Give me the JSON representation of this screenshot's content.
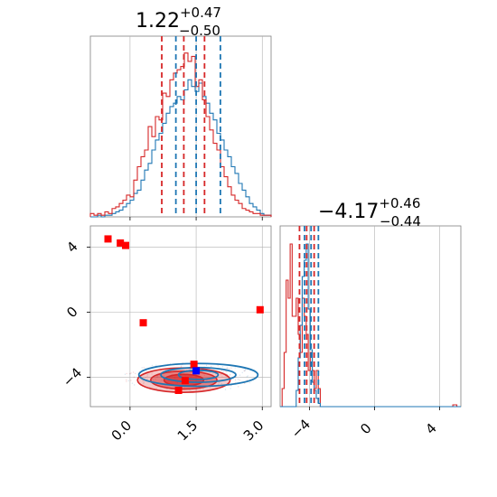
{
  "chart_data": {
    "type": "corner",
    "colors": {
      "red": "#d62728",
      "blue": "#1f77b4",
      "red_marker": "#ff0000",
      "blue_marker": "#0000ff",
      "grid": "#b0b0b0"
    },
    "x_param": {
      "title_main": "1.22",
      "title_sup": "+0.47",
      "title_sub": "−0.50",
      "range": [
        -0.9,
        3.2
      ],
      "ticks": [
        0.0,
        1.5,
        3.0
      ],
      "tick_labels": [
        "0.0",
        "1.5",
        "3.0"
      ],
      "quantiles_red": [
        0.72,
        1.22,
        1.69
      ],
      "quantiles_blue": [
        1.04,
        1.5,
        2.05
      ]
    },
    "y_param": {
      "title_main": "−4.17",
      "title_sup": "+0.46",
      "title_sub": "−0.44",
      "range": [
        -5.8,
        5.3
      ],
      "ticks": [
        -4,
        0,
        4
      ],
      "tick_labels": [
        "−4",
        "0",
        "4"
      ],
      "quantiles_red": [
        -4.61,
        -4.17,
        -3.71
      ],
      "quantiles_blue": [
        -4.3,
        -3.9,
        -3.45
      ]
    },
    "hist_x_red": [
      0.02,
      0.01,
      0.02,
      0.01,
      0.03,
      0.02,
      0.05,
      0.06,
      0.08,
      0.1,
      0.13,
      0.12,
      0.22,
      0.3,
      0.36,
      0.4,
      0.54,
      0.48,
      0.6,
      0.58,
      0.74,
      0.72,
      0.82,
      0.86,
      0.88,
      0.9,
      0.98,
      0.93,
      0.96,
      0.78,
      0.82,
      0.7,
      0.6,
      0.52,
      0.44,
      0.4,
      0.3,
      0.24,
      0.18,
      0.13,
      0.1,
      0.08,
      0.05,
      0.04,
      0.03,
      0.02,
      0.02,
      0.01,
      0.01,
      0.01
    ],
    "hist_x_blue": [
      0.0,
      0.0,
      0.01,
      0.0,
      0.01,
      0.01,
      0.02,
      0.03,
      0.04,
      0.06,
      0.08,
      0.1,
      0.14,
      0.16,
      0.22,
      0.28,
      0.32,
      0.4,
      0.46,
      0.5,
      0.56,
      0.62,
      0.66,
      0.68,
      0.72,
      0.7,
      0.76,
      0.82,
      0.78,
      0.75,
      0.8,
      0.72,
      0.68,
      0.62,
      0.58,
      0.5,
      0.46,
      0.4,
      0.36,
      0.3,
      0.26,
      0.2,
      0.16,
      0.12,
      0.08,
      0.06,
      0.04,
      0.02,
      0.01,
      0.01
    ],
    "hist_y_red": [
      0.0,
      0.1,
      0.3,
      0.7,
      0.6,
      0.9,
      0.5,
      0.5,
      0.6,
      0.4,
      0.3,
      0.6,
      0.5,
      0.4,
      0.2,
      0.3,
      0.2,
      0.1,
      0.2,
      0.1,
      0.0,
      0.0,
      0.0,
      0.0,
      0.0,
      0.0,
      0.0,
      0.0,
      0.0,
      0.0,
      0.0,
      0.0,
      0.0,
      0.0,
      0.0,
      0.0,
      0.0,
      0.0,
      0.0,
      0.0,
      0.0,
      0.0,
      0.0,
      0.0,
      0.0,
      0.0,
      0.0,
      0.0,
      0.0,
      0.0,
      0.0,
      0.0,
      0.0,
      0.0,
      0.0,
      0.0,
      0.0,
      0.0,
      0.0,
      0.0,
      0.0,
      0.0,
      0.0,
      0.0,
      0.0,
      0.0,
      0.0,
      0.0,
      0.0,
      0.0,
      0.0,
      0.0,
      0.0,
      0.0,
      0.0,
      0.0,
      0.0,
      0.0,
      0.0,
      0.0,
      0.0,
      0.0,
      0.0,
      0.0,
      0.0,
      0.0,
      0.01,
      0.01,
      0.0,
      0.0
    ],
    "hist_y_blue": [
      0.0,
      0.0,
      0.0,
      0.0,
      0.0,
      0.0,
      0.0,
      0.0,
      0.1,
      0.3,
      0.5,
      0.8,
      0.9,
      1.0,
      0.6,
      0.35,
      0.15,
      0.1,
      0.05,
      0.02,
      0.0,
      0.0,
      0.0,
      0.0,
      0.0,
      0.0,
      0.0,
      0.0,
      0.0,
      0.0,
      0.0,
      0.0,
      0.0,
      0.0,
      0.0,
      0.0,
      0.0,
      0.0,
      0.0,
      0.0,
      0.0,
      0.0,
      0.0,
      0.0,
      0.0,
      0.0,
      0.0,
      0.0,
      0.0,
      0.0,
      0.0,
      0.0,
      0.0,
      0.0,
      0.0,
      0.0,
      0.0,
      0.0,
      0.0,
      0.0,
      0.0,
      0.0,
      0.0,
      0.0,
      0.0,
      0.0,
      0.0,
      0.0,
      0.0,
      0.0,
      0.0,
      0.0,
      0.0,
      0.0,
      0.0,
      0.0,
      0.0,
      0.0,
      0.0,
      0.0,
      0.0,
      0.0,
      0.0,
      0.0,
      0.0,
      0.0,
      0.0,
      0.0,
      0.0,
      0.0
    ],
    "contours_red": [
      {
        "cx": 1.22,
        "cy": -4.17,
        "rx": 1.05,
        "ry": 0.75,
        "opacity": 0.25
      },
      {
        "cx": 1.22,
        "cy": -4.17,
        "rx": 0.75,
        "ry": 0.55,
        "opacity": 0.45
      },
      {
        "cx": 1.22,
        "cy": -4.17,
        "rx": 0.45,
        "ry": 0.35,
        "opacity": 0.65
      }
    ],
    "contours_blue": [
      {
        "cx": 1.55,
        "cy": -3.85,
        "rx": 1.35,
        "ry": 0.7
      },
      {
        "cx": 1.55,
        "cy": -3.85,
        "rx": 0.85,
        "ry": 0.45
      },
      {
        "cx": 1.55,
        "cy": -3.85,
        "rx": 0.45,
        "ry": 0.28
      }
    ],
    "markers_red": [
      [
        -0.5,
        4.5
      ],
      [
        -0.22,
        4.25
      ],
      [
        -0.1,
        4.1
      ],
      [
        0.3,
        -0.65
      ],
      [
        2.95,
        0.15
      ],
      [
        1.45,
        -3.2
      ],
      [
        1.25,
        -4.2
      ],
      [
        1.1,
        -4.8
      ]
    ],
    "markers_blue": [
      [
        1.5,
        -3.6
      ]
    ]
  }
}
